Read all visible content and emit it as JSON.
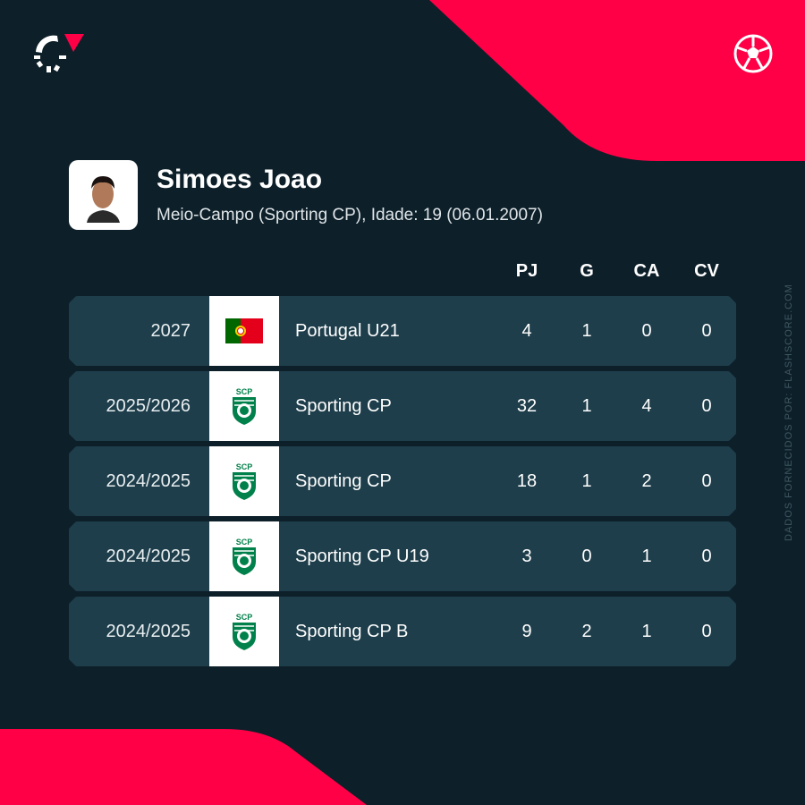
{
  "brand": {
    "accent": "#ff0046",
    "background": "#0d1f29",
    "row": "#1e3e4b",
    "logo_icon": "flashscore-logo",
    "sport_icon": "soccer-ball-icon"
  },
  "player": {
    "name": "Simoes Joao",
    "details": "Meio-Campo (Sporting CP), Idade: 19 (06.01.2007)"
  },
  "columns": [
    "PJ",
    "G",
    "CA",
    "CV"
  ],
  "rows": [
    {
      "season": "2027",
      "team": "Portugal U21",
      "badge": "portugal-flag",
      "stats": [
        "4",
        "1",
        "0",
        "0"
      ]
    },
    {
      "season": "2025/2026",
      "team": "Sporting CP",
      "badge": "sporting-cp-crest",
      "stats": [
        "32",
        "1",
        "4",
        "0"
      ]
    },
    {
      "season": "2024/2025",
      "team": "Sporting CP",
      "badge": "sporting-cp-crest",
      "stats": [
        "18",
        "1",
        "2",
        "0"
      ]
    },
    {
      "season": "2024/2025",
      "team": "Sporting CP U19",
      "badge": "sporting-cp-crest",
      "stats": [
        "3",
        "0",
        "1",
        "0"
      ]
    },
    {
      "season": "2024/2025",
      "team": "Sporting CP B",
      "badge": "sporting-cp-crest",
      "stats": [
        "9",
        "2",
        "1",
        "0"
      ]
    }
  ],
  "credit": "DADOS FORNECIDOS POR: FLASHSCORE.COM"
}
